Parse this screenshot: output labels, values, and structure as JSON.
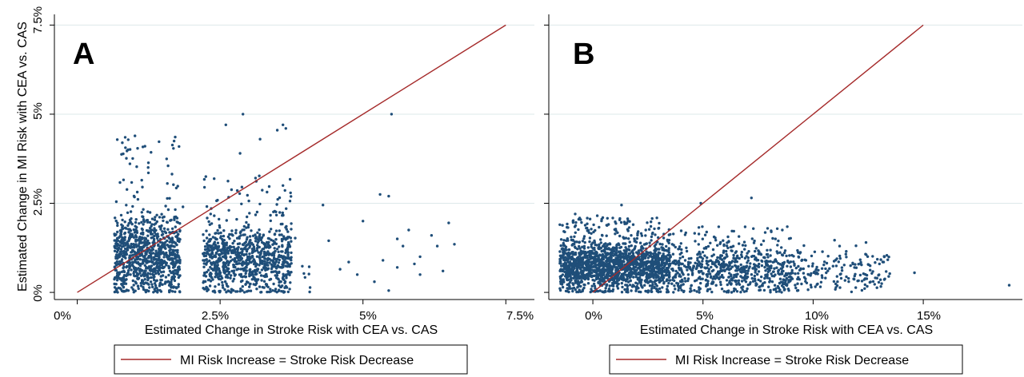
{
  "chart_data": [
    {
      "type": "scatter",
      "panel_label": "A",
      "xlabel": "Estimated Change in Stroke Risk with CEA vs. CAS",
      "ylabel": "Estimated Change in MI Risk with CEA vs. CAS",
      "xlim": [
        -0.4,
        8.0
      ],
      "ylim": [
        -0.2,
        7.8
      ],
      "x_ticks": [
        0,
        2.5,
        5,
        7.5
      ],
      "x_tick_labels": [
        "0%",
        "2.5%",
        "5%",
        "7.5%"
      ],
      "y_ticks": [
        0,
        2.5,
        5,
        7.5
      ],
      "y_tick_labels": [
        "0%",
        "2.5%",
        "5%",
        "7.5%"
      ],
      "grid": "horizontal",
      "reference_line": {
        "name": "MI Risk Increase = Stroke Risk Decrease",
        "x": [
          0,
          7.5
        ],
        "y": [
          0,
          7.5
        ]
      },
      "clusters": [
        {
          "x_range": [
            0.65,
            1.8
          ],
          "center_y": 1.0,
          "spread_y": 0.55,
          "tail_max_y": 4.4,
          "count": 950
        },
        {
          "x_range": [
            2.2,
            3.75
          ],
          "center_y": 0.9,
          "spread_y": 0.5,
          "tail_max_y": 3.3,
          "count": 900
        },
        {
          "x_range": [
            3.8,
            4.1
          ],
          "center_y": 1.0,
          "spread_y": 0.8,
          "tail_max_y": 2.7,
          "count": 8
        }
      ],
      "points": [
        [
          1.85,
          2.4
        ],
        [
          4.3,
          2.45
        ],
        [
          5.0,
          2.0
        ],
        [
          5.3,
          2.75
        ],
        [
          5.45,
          2.7
        ],
        [
          5.6,
          1.5
        ],
        [
          5.7,
          1.3
        ],
        [
          5.9,
          0.8
        ],
        [
          6.3,
          1.3
        ],
        [
          6.4,
          0.6
        ],
        [
          6.5,
          1.95
        ],
        [
          6.6,
          1.35
        ],
        [
          6.2,
          1.6
        ],
        [
          5.45,
          0.05
        ],
        [
          5.2,
          0.3
        ],
        [
          4.9,
          0.5
        ],
        [
          5.6,
          0.7
        ],
        [
          6.0,
          1.0
        ],
        [
          4.75,
          0.85
        ],
        [
          4.6,
          0.65
        ],
        [
          5.5,
          5.0
        ],
        [
          2.6,
          4.7
        ],
        [
          2.9,
          5.0
        ],
        [
          3.2,
          4.3
        ],
        [
          3.5,
          4.55
        ],
        [
          3.6,
          4.7
        ],
        [
          3.65,
          4.6
        ],
        [
          2.85,
          3.9
        ],
        [
          5.35,
          0.9
        ],
        [
          6.0,
          0.5
        ],
        [
          4.4,
          1.45
        ],
        [
          5.8,
          1.75
        ]
      ],
      "seed": 11
    },
    {
      "type": "scatter",
      "panel_label": "B",
      "xlabel": "Estimated Change in Stroke Risk with CEA vs. CAS",
      "ylabel": "",
      "xlim": [
        -2.0,
        19.5
      ],
      "ylim": [
        -0.2,
        7.8
      ],
      "x_ticks": [
        0,
        5,
        10,
        15
      ],
      "x_tick_labels": [
        "0%",
        "5%",
        "10%",
        "15%"
      ],
      "y_ticks": [
        0,
        2.5,
        5,
        7.5
      ],
      "y_tick_labels": [
        "",
        "",
        "",
        ""
      ],
      "grid": "horizontal",
      "reference_line": {
        "name": "MI Risk Increase = Stroke Risk Decrease",
        "x": [
          0,
          15
        ],
        "y": [
          0,
          7.5
        ]
      },
      "clusters": [
        {
          "x_range": [
            -1.5,
            3.5
          ],
          "center_y": 0.7,
          "spread_y": 0.35,
          "tail_max_y": 2.1,
          "count": 1700
        },
        {
          "x_range": [
            3.5,
            9.0
          ],
          "center_y": 0.6,
          "spread_y": 0.35,
          "tail_max_y": 1.9,
          "count": 650
        },
        {
          "x_range": [
            9.0,
            13.5
          ],
          "center_y": 0.55,
          "spread_y": 0.3,
          "tail_max_y": 1.5,
          "count": 180
        }
      ],
      "points": [
        [
          7.2,
          2.65
        ],
        [
          4.9,
          2.5
        ],
        [
          1.3,
          2.45
        ],
        [
          14.6,
          0.55
        ],
        [
          18.9,
          0.2
        ],
        [
          12.4,
          1.4
        ],
        [
          11.2,
          1.3
        ],
        [
          8.1,
          1.7
        ],
        [
          8.6,
          1.75
        ],
        [
          13.2,
          0.85
        ],
        [
          11.7,
          0.75
        ],
        [
          9.4,
          1.1
        ],
        [
          -1.5,
          1.9
        ],
        [
          -0.8,
          2.2
        ],
        [
          0.2,
          2.15
        ],
        [
          12.9,
          0.4
        ]
      ],
      "seed": 29
    }
  ],
  "legend_label": "MI Risk Increase = Stroke Risk Decrease",
  "colors": {
    "points": "#1f4e79",
    "line": "#a52a2a",
    "grid": "#dde8ea",
    "axis": "#000000"
  },
  "text": {
    "panelA": {
      "letter": "A",
      "xlabel": "Estimated Change in Stroke Risk with CEA vs. CAS",
      "ylabel": "Estimated Change in MI Risk with CEA vs. CAS",
      "xticks": [
        "0%",
        "2.5%",
        "5%",
        "7.5%"
      ],
      "yticks": [
        "0%",
        "2.5%",
        "5%",
        "7.5%"
      ]
    },
    "panelB": {
      "letter": "B",
      "xlabel": "Estimated Change in Stroke Risk with CEA vs. CAS",
      "xticks": [
        "0%",
        "5%",
        "10%",
        "15%"
      ]
    },
    "legend": "MI Risk Increase = Stroke Risk Decrease"
  }
}
